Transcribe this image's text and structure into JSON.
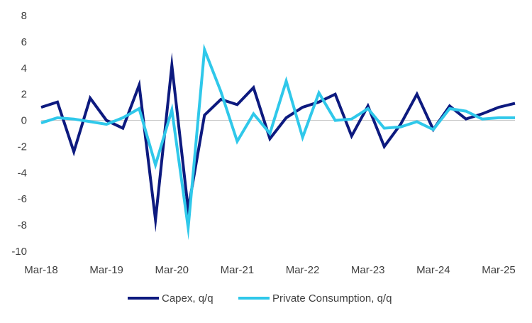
{
  "chart_data": {
    "type": "line",
    "title": "",
    "xlabel": "",
    "ylabel": "",
    "ylim": [
      -10,
      8
    ],
    "yticks": [
      8,
      6,
      4,
      2,
      0,
      -2,
      -4,
      -6,
      -8,
      -10
    ],
    "xtick_labels": [
      "Mar-18",
      "Mar-19",
      "Mar-20",
      "Mar-21",
      "Mar-22",
      "Mar-23",
      "Mar-24",
      "Mar-25"
    ],
    "x": [
      0,
      1,
      2,
      3,
      4,
      5,
      6,
      7,
      8,
      9,
      10,
      11,
      12,
      13,
      14,
      15,
      16,
      17,
      18,
      19,
      20,
      21,
      22,
      23,
      24,
      25,
      26,
      27,
      28,
      29
    ],
    "legend_position": "bottom",
    "series": [
      {
        "name": "Capex, q/q",
        "color": "#0d1a7f",
        "values": [
          1.0,
          1.4,
          -2.4,
          1.7,
          0.0,
          -0.6,
          2.7,
          -7.6,
          4.2,
          -6.8,
          0.4,
          1.6,
          1.2,
          2.5,
          -1.4,
          0.2,
          1.0,
          1.4,
          2.0,
          -1.2,
          1.1,
          -2.0,
          -0.3,
          2.0,
          -0.7,
          1.1,
          0.1,
          0.5,
          1.0,
          1.3
        ]
      },
      {
        "name": "Private Consumption, q/q",
        "color": "#2fc8ea",
        "values": [
          -0.2,
          0.2,
          0.1,
          -0.1,
          -0.3,
          0.2,
          0.9,
          -3.4,
          0.8,
          -8.2,
          5.4,
          2.2,
          -1.6,
          0.5,
          -1.0,
          3.0,
          -1.3,
          2.1,
          0.0,
          0.1,
          0.9,
          -0.6,
          -0.5,
          -0.1,
          -0.7,
          0.9,
          0.7,
          0.1,
          0.2,
          0.2
        ]
      }
    ]
  }
}
